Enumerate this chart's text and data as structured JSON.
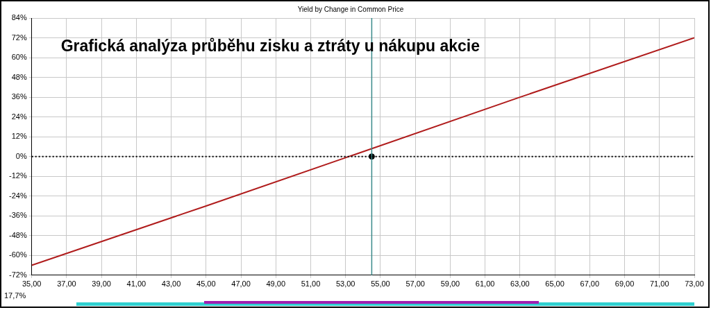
{
  "chart_data": {
    "type": "line",
    "title": "Yield by Change in Common Price",
    "annotations": [
      "Grafická analýza průběhu zisku a ztráty u nákupu akcie",
      "17,7%"
    ],
    "series": [
      {
        "color": "#b01c1c",
        "x": [
          35,
          45,
          53.2,
          63,
          73
        ],
        "values": [
          -66,
          -30,
          0,
          36,
          72
        ]
      },
      {
        "type": "scatter",
        "color": "#000000",
        "x": [
          54.5
        ],
        "values": [
          0
        ],
        "marker": "circle"
      }
    ],
    "xlim": [
      35,
      73
    ],
    "xticks": [
      {
        "value": 35,
        "label": "35,00"
      },
      {
        "value": 37,
        "label": "37,00"
      },
      {
        "value": 39,
        "label": "39,00"
      },
      {
        "value": 41,
        "label": "41,00"
      },
      {
        "value": 43,
        "label": "43,00"
      },
      {
        "value": 45,
        "label": "45,00"
      },
      {
        "value": 47,
        "label": "47,00"
      },
      {
        "value": 49,
        "label": "49,00"
      },
      {
        "value": 51,
        "label": "51,00"
      },
      {
        "value": 53,
        "label": "53,00"
      },
      {
        "value": 55,
        "label": "55,00"
      },
      {
        "value": 57,
        "label": "57,00"
      },
      {
        "value": 59,
        "label": "59,00"
      },
      {
        "value": 61,
        "label": "61,00"
      },
      {
        "value": 63,
        "label": "63,00"
      },
      {
        "value": 65,
        "label": "65,00"
      },
      {
        "value": 67,
        "label": "67,00"
      },
      {
        "value": 69,
        "label": "69,00"
      },
      {
        "value": 71,
        "label": "71,00"
      },
      {
        "value": 73,
        "label": "73,00"
      }
    ],
    "ylim": [
      -72,
      84
    ],
    "yticks": [
      {
        "value": -72,
        "label": "-72%"
      },
      {
        "value": -60,
        "label": "-60%"
      },
      {
        "value": -48,
        "label": "-48%"
      },
      {
        "value": -36,
        "label": "-36%"
      },
      {
        "value": -24,
        "label": "-24%"
      },
      {
        "value": -12,
        "label": "-12%"
      },
      {
        "value": 0,
        "label": "0%"
      },
      {
        "value": 12,
        "label": "12%"
      },
      {
        "value": 24,
        "label": "24%"
      },
      {
        "value": 36,
        "label": "36%"
      },
      {
        "value": 48,
        "label": "48%"
      },
      {
        "value": 60,
        "label": "60%"
      },
      {
        "value": 72,
        "label": "72%"
      },
      {
        "value": 84,
        "label": "84%"
      }
    ],
    "ref_lines": [
      {
        "axis": "x",
        "value": 54.5,
        "color": "#3a8a8a",
        "line_style": "solid"
      },
      {
        "axis": "y",
        "value": 0,
        "color": "#000000",
        "line_style": "dotted"
      }
    ],
    "grid": true,
    "legend": false,
    "marker": "none",
    "line_style": "solid"
  }
}
